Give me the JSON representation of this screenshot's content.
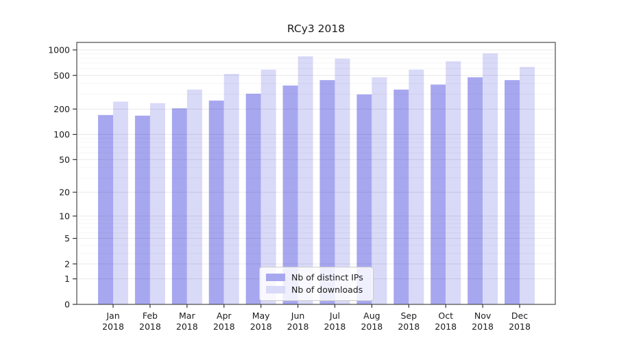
{
  "title": "RCy3 2018",
  "chart_data": {
    "type": "bar",
    "title": "RCy3 2018",
    "categories": [
      "Jan",
      "Feb",
      "Mar",
      "Apr",
      "May",
      "Jun",
      "Jul",
      "Aug",
      "Sep",
      "Oct",
      "Nov",
      "Dec"
    ],
    "year_label": "2018",
    "series": [
      {
        "name": "Nb of distinct IPs",
        "color": "#a7a7f0",
        "values": [
          170,
          167,
          204,
          252,
          304,
          380,
          440,
          298,
          340,
          390,
          475,
          440
        ]
      },
      {
        "name": "Nb of downloads",
        "color": "#d9d9f8",
        "values": [
          245,
          235,
          340,
          520,
          585,
          840,
          790,
          475,
          585,
          735,
          910,
          630
        ]
      }
    ],
    "y_ticks": [
      0,
      1,
      2,
      5,
      10,
      20,
      50,
      100,
      200,
      500,
      1000
    ],
    "y_minor_ticks": [
      3,
      4,
      6,
      7,
      8,
      9,
      30,
      40,
      60,
      70,
      80,
      90,
      300,
      400,
      600,
      700,
      800,
      900
    ],
    "scale": "log1p",
    "ylim": [
      0,
      1200
    ],
    "xlabel": "",
    "ylabel": "",
    "grid": true,
    "legend_position": "lower center",
    "colors": {
      "spine": "#4a4a4a",
      "tick": "#333333",
      "tick_label": "#1a1a1a",
      "grid_major": "rgba(0,0,0,0.085)",
      "grid_minor": "rgba(0,0,0,0.04)",
      "background": "#ffffff"
    }
  }
}
